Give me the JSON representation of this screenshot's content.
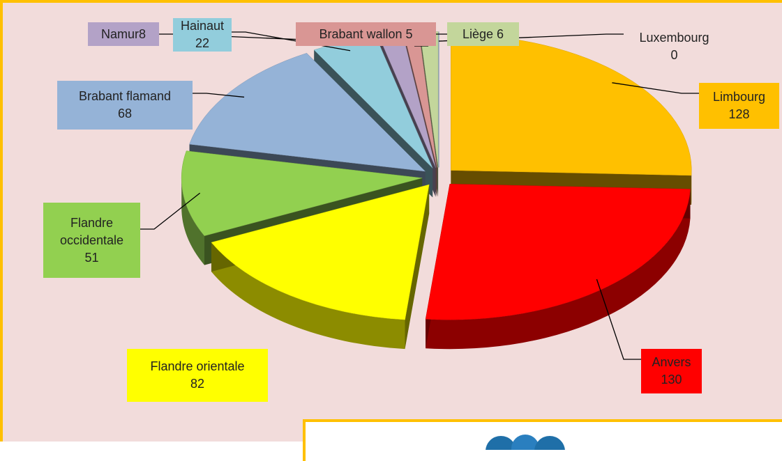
{
  "chart_data": {
    "type": "pie",
    "categories": [
      "Limbourg",
      "Anvers",
      "Flandre orientale",
      "Flandre occidentale",
      "Brabant flamand",
      "Hainaut",
      "Namur",
      "Brabant wallon",
      "Liège",
      "Luxembourg"
    ],
    "values": [
      128,
      130,
      82,
      51,
      68,
      22,
      8,
      5,
      6,
      0
    ],
    "colors": [
      "#ffc000",
      "#ff0000",
      "#ffff00",
      "#92d050",
      "#95b3d7",
      "#92cddc",
      "#b3a2c7",
      "#d99694",
      "#c3d69b",
      "#4f81bd"
    ]
  }
}
